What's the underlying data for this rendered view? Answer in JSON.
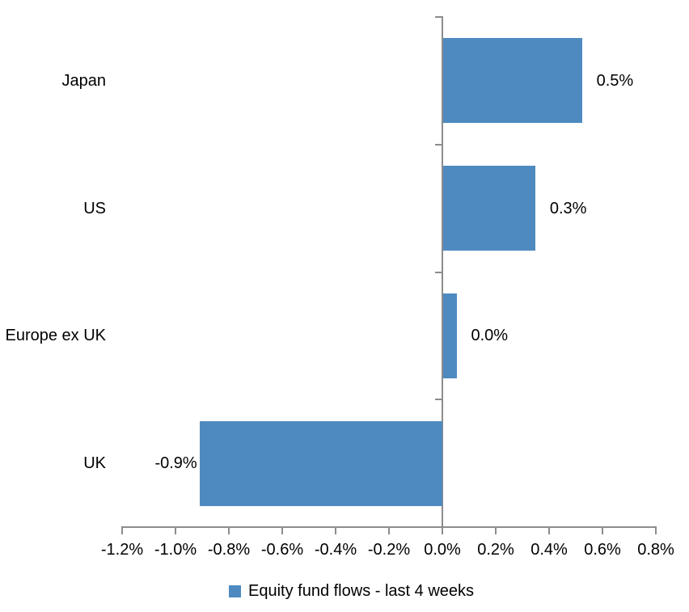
{
  "chart_data": {
    "type": "bar",
    "orientation": "horizontal",
    "title": "",
    "categories": [
      "Japan",
      "US",
      "Europe ex UK",
      "UK"
    ],
    "series": [
      {
        "name": "Equity fund flows - last 4 weeks",
        "values": [
          0.5,
          0.3,
          0.0,
          -0.9
        ],
        "values_precise": [
          0.52,
          0.345,
          0.05,
          -0.91
        ],
        "labels": [
          "0.5%",
          "0.3%",
          "0.0%",
          "-0.9%"
        ]
      }
    ],
    "xlim": [
      -1.2,
      0.8
    ],
    "x_tick_step": 0.2,
    "x_tick_labels": [
      "-1.2%",
      "-1.0%",
      "-0.8%",
      "-0.6%",
      "-0.4%",
      "-0.2%",
      "0.0%",
      "0.2%",
      "0.4%",
      "0.6%",
      "0.8%"
    ],
    "grid": false,
    "legend": {
      "label": "Equity fund flows - last 4 weeks",
      "position": "bottom"
    },
    "bar_color": "#4E8AC0",
    "axis_color": "#8C8C8C",
    "text_color": "#000000",
    "background": "#FFFFFF"
  }
}
